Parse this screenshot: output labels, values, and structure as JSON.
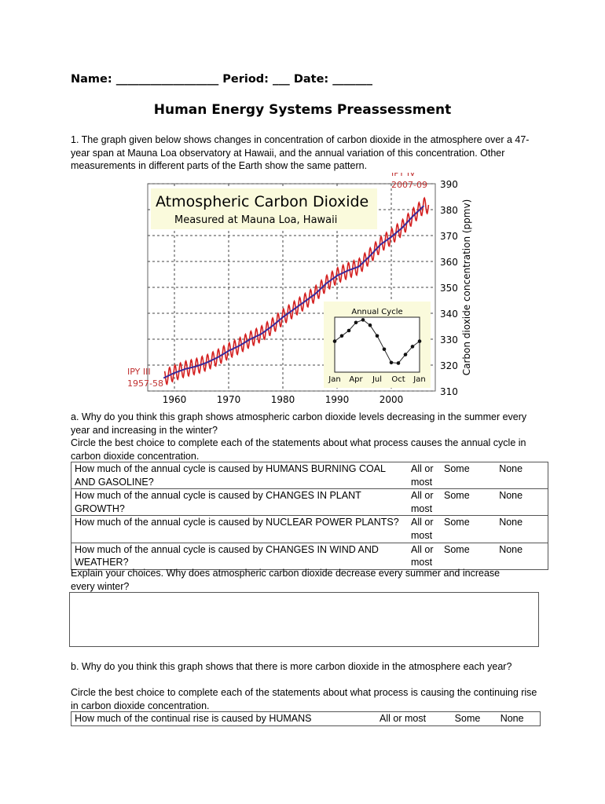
{
  "header": {
    "line": "Name: __________________ Period: ___ Date: _______"
  },
  "title": "Human Energy Systems Preassessment",
  "q1": {
    "intro": "1. The graph given below shows changes in concentration of carbon dioxide in the atmosphere over a 47-year span at Mauna Loa observatory at Hawaii, and the annual variation of this concentration.  Other measurements in different parts of the Earth show the same pattern."
  },
  "chart_data": {
    "type": "line",
    "title": "Atmospheric Carbon Dioxide",
    "subtitle": "Measured at Mauna Loa, Hawaii",
    "ylabel": "Carbon dioxide concentration (ppmv)",
    "xlabel": "",
    "xlim": [
      1955,
      2010
    ],
    "ylim": [
      310,
      390
    ],
    "xticks": [
      "1960",
      "1970",
      "1980",
      "1990",
      "2000"
    ],
    "yticks": [
      "310",
      "320",
      "330",
      "340",
      "350",
      "360",
      "370",
      "380",
      "390"
    ],
    "grid": true,
    "annotations": [
      {
        "text": "IPY III",
        "text2": "1957-58"
      },
      {
        "text": "IPY IV",
        "text2": "2007-09"
      }
    ],
    "series": [
      {
        "kind": "annual-mean",
        "color": "#3a2a9a",
        "x": [
          1958,
          1960,
          1962,
          1964,
          1966,
          1968,
          1970,
          1972,
          1974,
          1976,
          1978,
          1980,
          1982,
          1984,
          1986,
          1988,
          1990,
          1992,
          1994,
          1996,
          1998,
          2000,
          2002,
          2004,
          2006
        ],
        "values": [
          315,
          317,
          318.5,
          319.5,
          321,
          323,
          325.5,
          327.5,
          330,
          332,
          335,
          338.5,
          341.5,
          344.5,
          347.5,
          351.5,
          354.5,
          356.5,
          358,
          362,
          366.5,
          369.5,
          373,
          377.5,
          381.5
        ]
      },
      {
        "kind": "monthly",
        "color": "#d42020",
        "seasonal_amplitude": 3
      }
    ],
    "inset": {
      "title": "Annual Cycle",
      "xticks": [
        "Jan",
        "Apr",
        "Jul",
        "Oct",
        "Jan"
      ],
      "values": [
        328,
        330,
        332,
        335,
        336,
        334,
        330,
        325,
        320,
        319.8,
        323,
        326,
        328
      ]
    }
  },
  "qa": {
    "prompt": "a. Why do you think this graph shows atmospheric carbon dioxide levels decreasing in the summer every year and increasing in the winter?",
    "circle": "Circle the best choice to complete each of the statements about what process causes the annual cycle in carbon dioxide concentration.",
    "rows": [
      {
        "q": "How much of the annual cycle is caused by HUMANS BURNING COAL AND GASOLINE?",
        "a": "All or most",
        "b": "Some",
        "c": "None"
      },
      {
        "q": "How much of the annual cycle is caused by CHANGES IN PLANT GROWTH?",
        "a": "All or most",
        "b": "Some",
        "c": "None"
      },
      {
        "q": "How much of the annual cycle is caused by NUCLEAR POWER PLANTS?",
        "a": "All or most",
        "b": "Some",
        "c": "None"
      },
      {
        "q": "How much of the annual cycle is caused by CHANGES IN WIND AND WEATHER?",
        "a": "All or most",
        "b": "Some",
        "c": "None"
      }
    ],
    "explain": "Explain your choices.  Why does atmospheric carbon dioxide decrease every summer and increase every winter?"
  },
  "qb": {
    "prompt": "b. Why do you think this graph shows that there is more carbon dioxide in the atmosphere each year?",
    "circle": "Circle the best choice to complete each of the statements about what process is causing the continuing rise in carbon dioxide concentration.",
    "rows": [
      {
        "q": "How much of the continual rise is caused by HUMANS",
        "a": "All or most",
        "b": "Some",
        "c": "None"
      }
    ]
  }
}
